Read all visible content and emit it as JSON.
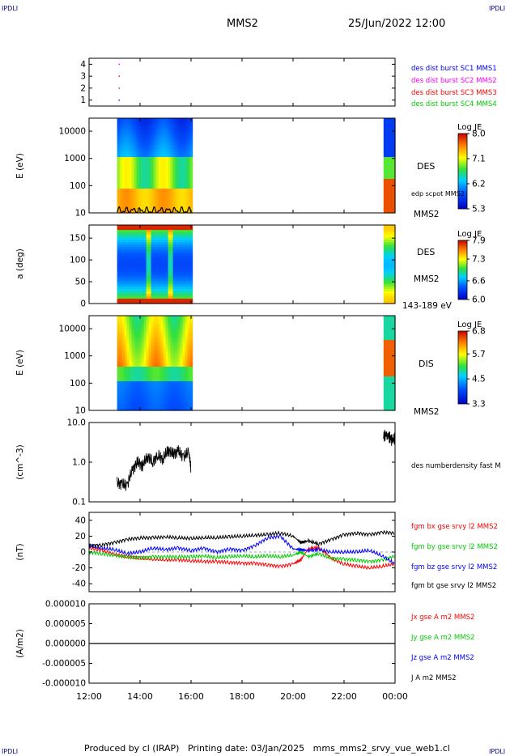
{
  "header": {
    "corner_label": "IPDLI",
    "spacecraft": "MMS2",
    "datetime": "25/Jun/2022 12:00"
  },
  "footer": {
    "produced": "Produced by cl (IRAP)",
    "printing_date": "Printing date: 03/Jan/2025",
    "file": "mms_mms2_srvy_vue_web1.cl"
  },
  "time_axis": {
    "ticks": [
      "12:00",
      "14:00",
      "16:00",
      "18:00",
      "20:00",
      "22:00",
      "00:00"
    ],
    "range_hours": [
      12,
      24
    ]
  },
  "colors": {
    "c1": "#0000ff",
    "c2": "#ff00ff",
    "c3": "#ff0000",
    "c4": "#00cc00",
    "black": "#000000"
  },
  "chart_data": [
    {
      "type": "scatter",
      "panel": "burst",
      "y_ticks": [
        "4",
        "3",
        "2",
        "1"
      ],
      "ylim": [
        0.5,
        4.5
      ],
      "legend": [
        "des dist burst SC1 MMS1",
        "des dist burst SC2 MMS2",
        "des dist burst SC3 MMS3",
        "des dist burst SC4 MMS4"
      ],
      "series": [
        {
          "color": "#0000ff",
          "points": [
            [
              13.18,
              1
            ]
          ]
        },
        {
          "color": "#ff00ff",
          "points": [
            [
              13.18,
              4
            ]
          ]
        },
        {
          "color": "#ff0000",
          "points": [
            [
              13.18,
              3
            ],
            [
              13.18,
              2
            ]
          ]
        }
      ]
    },
    {
      "type": "heatmap",
      "panel": "des_energy",
      "ylabel": "E (eV)",
      "y_ticks": [
        "10000",
        "1000",
        "100",
        "10"
      ],
      "ylim": [
        10,
        30000
      ],
      "log_y": true,
      "species_label": "DES",
      "line_label": "edp scpot MMS2",
      "sc_label": "MMS2",
      "colorbar": {
        "title": "Log JE",
        "ticks": [
          "8.0",
          "7.1",
          "6.2",
          "5.3"
        ],
        "range": [
          5.3,
          8.0
        ]
      },
      "data_intervals_hours": [
        [
          13.1,
          16.05
        ],
        [
          23.55,
          24.0
        ]
      ]
    },
    {
      "type": "heatmap",
      "panel": "des_pitch",
      "ylabel": "a (deg)",
      "y_ticks": [
        "150",
        "100",
        "50",
        "0"
      ],
      "ylim": [
        0,
        180
      ],
      "species_label": "DES",
      "sc_label": "MMS2",
      "energy_label": "143-189 eV",
      "colorbar": {
        "title": "Log JE",
        "ticks": [
          "7.9",
          "7.3",
          "6.6",
          "6.0"
        ],
        "range": [
          6.0,
          7.9
        ]
      },
      "data_intervals_hours": [
        [
          13.1,
          16.05
        ],
        [
          23.55,
          24.0
        ]
      ]
    },
    {
      "type": "heatmap",
      "panel": "dis_energy",
      "ylabel": "E (eV)",
      "y_ticks": [
        "10000",
        "1000",
        "100",
        "10"
      ],
      "ylim": [
        10,
        30000
      ],
      "log_y": true,
      "species_label": "DIS",
      "sc_label": "MMS2",
      "colorbar": {
        "title": "Log JE",
        "ticks": [
          "6.8",
          "5.7",
          "4.5",
          "3.3"
        ],
        "range": [
          3.3,
          6.8
        ]
      },
      "data_intervals_hours": [
        [
          13.1,
          16.05
        ],
        [
          23.55,
          24.0
        ]
      ]
    },
    {
      "type": "line",
      "panel": "density",
      "ylabel": "(cm^-3)",
      "y_ticks": [
        "10.0",
        "1.0",
        "0.1"
      ],
      "ylim": [
        0.1,
        10
      ],
      "log_y": true,
      "legend": [
        "des numberdensity fast M"
      ],
      "series": [
        {
          "color": "#000000",
          "x": [
            13.1,
            13.3,
            13.5,
            13.7,
            13.9,
            14.1,
            14.3,
            14.5,
            14.7,
            14.9,
            15.1,
            15.3,
            15.5,
            15.7,
            15.9,
            16.0
          ],
          "y": [
            0.3,
            0.28,
            0.25,
            0.6,
            1.0,
            0.8,
            1.4,
            1.0,
            1.5,
            1.2,
            2.0,
            1.6,
            1.9,
            1.3,
            1.8,
            0.6
          ]
        },
        {
          "color": "#000000",
          "x": [
            23.55,
            23.7,
            23.85,
            24.0
          ],
          "y": [
            4.5,
            5.0,
            3.6,
            4.0
          ]
        }
      ]
    },
    {
      "type": "line",
      "panel": "fgm",
      "ylabel": "(nT)",
      "y_ticks": [
        "40",
        "20",
        "0",
        "-20",
        "-40"
      ],
      "ylim": [
        -50,
        50
      ],
      "legend": [
        "fgm bx gse srvy l2 MMS2",
        "fgm by gse srvy l2 MMS2",
        "fgm bz gse srvy l2 MMS2",
        "fgm bt gse srvy l2 MMS2"
      ],
      "x": [
        12.0,
        12.5,
        13.0,
        13.5,
        14.0,
        14.5,
        15.0,
        15.5,
        16.0,
        16.5,
        17.0,
        17.5,
        18.0,
        18.5,
        19.0,
        19.5,
        20.0,
        20.3,
        20.6,
        21.0,
        21.5,
        22.0,
        22.5,
        23.0,
        23.5,
        24.0
      ],
      "series": [
        {
          "color": "#ff0000",
          "values": [
            5,
            2,
            -3,
            -6,
            -8,
            -9,
            -10,
            -10,
            -11,
            -12,
            -12,
            -13,
            -14,
            -14,
            -16,
            -18,
            -15,
            -10,
            4,
            6,
            -8,
            -15,
            -18,
            -20,
            -18,
            -15
          ]
        },
        {
          "color": "#00cc00",
          "values": [
            0,
            -2,
            -4,
            -6,
            -7,
            -6,
            -6,
            -6,
            -6,
            -5,
            -7,
            -6,
            -5,
            -6,
            -5,
            -6,
            -4,
            0,
            -6,
            -2,
            -8,
            -9,
            -10,
            -12,
            -10,
            -5
          ]
        },
        {
          "color": "#0000ff",
          "values": [
            8,
            5,
            3,
            -2,
            0,
            5,
            3,
            5,
            2,
            5,
            0,
            4,
            2,
            8,
            18,
            20,
            4,
            3,
            2,
            3,
            0,
            0,
            0,
            2,
            -5,
            -15
          ]
        },
        {
          "color": "#000000",
          "values": [
            8,
            9,
            12,
            16,
            18,
            18,
            19,
            18,
            17,
            18,
            18,
            19,
            20,
            21,
            22,
            24,
            20,
            12,
            14,
            10,
            16,
            22,
            24,
            22,
            25,
            24
          ]
        }
      ]
    },
    {
      "type": "line",
      "panel": "currents",
      "ylabel": "(A/m2)",
      "y_ticks": [
        "0.000010",
        "0.000005",
        "0.000000",
        "-0.000005",
        "-0.000010"
      ],
      "ylim": [
        -1e-05,
        1e-05
      ],
      "legend": [
        "Jx gse A m2 MMS2",
        "Jy gse A m2 MMS2",
        "Jz gse A m2 MMS2",
        "J A m2 MMS2"
      ],
      "series": [
        {
          "color": "#000000",
          "x": [
            12.0,
            24.0
          ],
          "y": [
            0.0,
            0.0
          ]
        }
      ]
    }
  ]
}
